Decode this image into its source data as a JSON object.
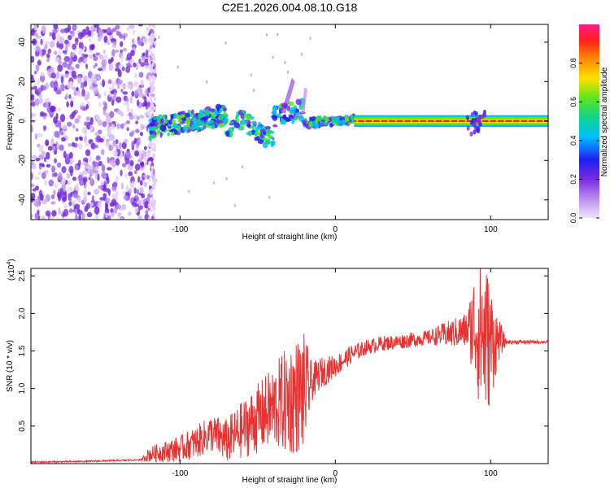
{
  "title": "C2E1.2026.004.08.10.G18",
  "chart_data": [
    {
      "type": "heatmap",
      "title": "C2E1.2026.004.08.10.G18",
      "xlabel": "Height of straight line (km)",
      "ylabel": "Frequency (Hz)",
      "xlim": [
        -196,
        137
      ],
      "ylim": [
        -50,
        49
      ],
      "xticks": [
        -100,
        0,
        100
      ],
      "xtick_labels": [
        "-100",
        "0",
        "100"
      ],
      "yticks": [
        40,
        20,
        0,
        -20,
        -40
      ],
      "ytick_labels": [
        "40",
        "20",
        "0",
        "-20",
        "-40"
      ],
      "colorbar": {
        "label": "Normalized spectral amplitude",
        "range": [
          0,
          1
        ],
        "ticks": [
          0,
          0.2,
          0.4,
          0.6,
          0.8
        ],
        "tick_labels": [
          "0.0",
          "0.2",
          "0.4",
          "0.6",
          "0.8"
        ],
        "colors": [
          "#f2e6fb",
          "#7b2be0",
          "#1e1ef0",
          "#00bfff",
          "#12d38c",
          "#5ee61a",
          "#ffe000",
          "#ff8a00",
          "#ff1e1e",
          "#ff1a8c"
        ]
      },
      "regions": [
        {
          "x_range": [
            -196,
            -120
          ],
          "freq_range": [
            -50,
            49
          ],
          "amplitude": "low (0.0-0.2), broadband noise"
        },
        {
          "x_range": [
            -120,
            -70
          ],
          "freq_center": [
            -4,
            4
          ],
          "amplitude": "0.3-0.6"
        },
        {
          "x_range": [
            -75,
            -20
          ],
          "freq_center": [
            -6,
            8
          ],
          "amplitude": "0.3-0.6, spread"
        },
        {
          "x_range": [
            -20,
            12
          ],
          "freq_center": [
            0,
            0
          ],
          "amplitude": "0.4-0.7"
        },
        {
          "x_range": [
            12,
            137
          ],
          "freq_center": [
            0,
            0
          ],
          "amplitude": "0.8-1.0, narrow line"
        }
      ]
    },
    {
      "type": "line",
      "xlabel": "Height of straight line (km)",
      "ylabel": "SNR (10 * v/v)",
      "y_scale_label": "(x10",
      "y_scale_exponent": "4",
      "xlim": [
        -196,
        137
      ],
      "ylim": [
        0,
        2.6
      ],
      "xticks": [
        -100,
        0,
        100
      ],
      "xtick_labels": [
        "-100",
        "0",
        "100"
      ],
      "yticks": [
        0.5,
        1.0,
        1.5,
        2.0,
        2.5
      ],
      "ytick_labels": [
        "0.5",
        "1.0",
        "1.5",
        "2.0",
        "2.5"
      ],
      "series": [
        {
          "name": "SNR",
          "color": "#e83232",
          "envelope_x": [
            -196,
            -160,
            -125,
            -120,
            -100,
            -90,
            -80,
            -70,
            -60,
            -50,
            -40,
            -30,
            -20,
            -10,
            0,
            10,
            20,
            30,
            40,
            50,
            60,
            70,
            80,
            85,
            90,
            95,
            100,
            105,
            110,
            120,
            137
          ],
          "envelope_y": [
            0.02,
            0.03,
            0.05,
            0.12,
            0.2,
            0.28,
            0.4,
            0.3,
            0.45,
            0.6,
            0.75,
            0.85,
            0.95,
            1.2,
            1.3,
            1.45,
            1.55,
            1.6,
            1.62,
            1.65,
            1.68,
            1.72,
            1.75,
            1.78,
            1.85,
            1.7,
            1.6,
            1.65,
            1.62,
            1.62,
            1.62
          ],
          "noise_x": [
            -196,
            -125,
            -120,
            -80,
            -70,
            -40,
            -30,
            -20,
            -15,
            0,
            20,
            60,
            85,
            90,
            95,
            100,
            105,
            110,
            137
          ],
          "noise_amp": [
            0.01,
            0.01,
            0.1,
            0.25,
            0.3,
            0.55,
            0.75,
            0.8,
            0.25,
            0.15,
            0.1,
            0.1,
            0.25,
            0.8,
            1.2,
            0.8,
            0.3,
            0.03,
            0.02
          ]
        }
      ]
    }
  ]
}
